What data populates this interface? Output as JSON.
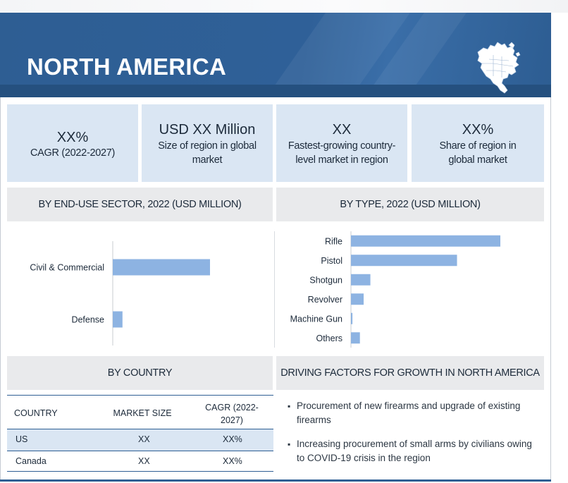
{
  "header": {
    "title": "NORTH AMERICA"
  },
  "kpis": [
    {
      "value": "XX%",
      "label": "CAGR (2022-2027)"
    },
    {
      "value": "USD XX Million",
      "label": "Size of region in global market"
    },
    {
      "value": "XX",
      "label": "Fastest-growing country-level market in region"
    },
    {
      "value": "XX%",
      "label": "Share of region in global market"
    }
  ],
  "sections": {
    "end_use": "BY END-USE SECTOR, 2022 (USD MILLION)",
    "type": "BY TYPE, 2022 (USD MILLION)",
    "country": "BY COUNTRY",
    "drivers": "DRIVING FACTORS FOR GROWTH IN NORTH AMERICA"
  },
  "country_table": {
    "headers": [
      "COUNTRY",
      "MARKET SIZE",
      "CAGR (2022-2027)"
    ],
    "rows": [
      [
        "US",
        "XX",
        "XX%"
      ],
      [
        "Canada",
        "XX",
        "XX%"
      ]
    ]
  },
  "drivers": [
    "Procurement of new firearms and upgrade of existing firearms",
    "Increasing procurement of small arms by civilians owing to COVID-19 crisis in the region"
  ],
  "colors": {
    "bar": "#8db3e2",
    "header": "#2f6098",
    "kpi_bg": "#dae6f3",
    "section_bg": "#e9eaec",
    "row_highlight": "#dae6f3"
  },
  "chart_data": [
    {
      "type": "bar",
      "orientation": "horizontal",
      "title": "BY END-USE SECTOR, 2022 (USD MILLION)",
      "categories": [
        "Civil & Commercial",
        "Defense"
      ],
      "values": [
        100,
        10
      ],
      "xlim": [
        0,
        100
      ]
    },
    {
      "type": "bar",
      "orientation": "horizontal",
      "title": "BY TYPE, 2022 (USD MILLION)",
      "categories": [
        "Rifle",
        "Pistol",
        "Shotgun",
        "Revolver",
        "Machine Gun",
        "Others"
      ],
      "values": [
        100,
        71,
        13,
        8.5,
        1,
        6
      ],
      "xlim": [
        0,
        100
      ]
    }
  ]
}
